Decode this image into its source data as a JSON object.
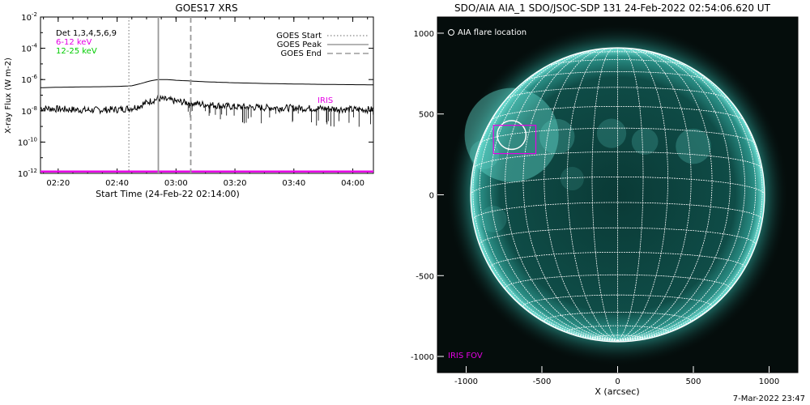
{
  "left_chart": {
    "title": "GOES17 XRS",
    "ylabel": "X-ray Flux (W m-2)",
    "xlabel": "Start Time (24-Feb-22 02:14:00)",
    "y_ticks": [
      "10-2",
      "10-4",
      "10-6",
      "10-8",
      "10-10",
      "10-12"
    ],
    "x_ticks": [
      "02:20",
      "02:40",
      "03:00",
      "03:20",
      "03:40",
      "04:00"
    ],
    "channel_labels": [
      {
        "text": "Det 1,3,4,5,6,9",
        "color": "#000000"
      },
      {
        "text": "6-12 keV",
        "color": "#e600e6"
      },
      {
        "text": "12-25 keV",
        "color": "#00cc00"
      }
    ],
    "legend": [
      {
        "label": "GOES Start",
        "style": "dotted"
      },
      {
        "label": "GOES Peak",
        "style": "solid"
      },
      {
        "label": "GOES End",
        "style": "dashed"
      }
    ],
    "iris_label": "IRIS"
  },
  "right_image": {
    "title": "SDO/AIA AIA_1 SDO/JSOC-SDP 131 24-Feb-2022 02:54:06.620 UT",
    "flare_label": "AIA flare location",
    "iris_fov_label": "IRIS FOV",
    "xlabel": "X (arcsec)",
    "x_ticks": [
      "-1000",
      "-500",
      "0",
      "500",
      "1000"
    ],
    "y_ticks": [
      "1000",
      "500",
      "0",
      "-500",
      "-1000"
    ]
  },
  "footer": "7-Mar-2022 23:47",
  "chart_data": [
    {
      "type": "line",
      "title": "GOES17 XRS",
      "xlabel": "Start Time (24-Feb-22 02:14:00)",
      "ylabel": "X-ray Flux (W m-2)",
      "y_scale": "log",
      "xlim": [
        "02:14",
        "04:07"
      ],
      "ylim": [
        1e-12,
        0.01
      ],
      "series": [
        {
          "name": "6-12 keV",
          "color": "#000000",
          "x": [
            "02:14",
            "02:20",
            "02:30",
            "02:40",
            "02:45",
            "02:48",
            "02:51",
            "02:54",
            "02:57",
            "03:00",
            "03:10",
            "03:20",
            "03:30",
            "03:40",
            "03:50",
            "04:00",
            "04:07"
          ],
          "y": [
            3e-07,
            3.2e-07,
            3.4e-07,
            3.6e-07,
            4e-07,
            5.5e-07,
            8e-07,
            1e-06,
            1e-06,
            9e-07,
            7.2e-07,
            6.2e-07,
            5.6e-07,
            5.2e-07,
            4.9e-07,
            4.7e-07,
            4.6e-07
          ]
        },
        {
          "name": "12-25 keV",
          "color": "#000000",
          "x": [
            "02:14",
            "02:20",
            "02:30",
            "02:40",
            "02:45",
            "02:48",
            "02:51",
            "02:54",
            "02:57",
            "03:00",
            "03:10",
            "03:20",
            "03:30",
            "03:40",
            "03:50",
            "04:00",
            "04:07"
          ],
          "y": [
            1.5e-08,
            1.3e-08,
            1.1e-08,
            1.2e-08,
            1.5e-08,
            2.2e-08,
            4e-08,
            6e-08,
            5e-08,
            4e-08,
            2.5e-08,
            1.8e-08,
            1.6e-08,
            1.5e-08,
            1.4e-08,
            1.2e-08,
            1.2e-08
          ]
        },
        {
          "name": "IRIS",
          "color": "#e600e6",
          "x": [
            "02:14",
            "04:07"
          ],
          "y": [
            1.3e-12,
            1.3e-12
          ]
        }
      ],
      "vertical_markers": [
        {
          "name": "GOES Start",
          "x": "02:44",
          "style": "dotted"
        },
        {
          "name": "GOES Peak",
          "x": "02:54",
          "style": "solid"
        },
        {
          "name": "GOES End",
          "x": "03:05",
          "style": "dashed"
        }
      ]
    },
    {
      "type": "image",
      "title": "SDO/AIA AIA_1 SDO/JSOC-SDP 131 24-Feb-2022 02:54:06.620 UT",
      "xlabel": "X (arcsec)",
      "xlim": [
        -1190,
        1190
      ],
      "ylim": [
        -1100,
        1100
      ],
      "solar_radius_arcsec": 970,
      "flare_location": {
        "x": -700,
        "y": 370
      },
      "iris_fov": {
        "x": [
          -820,
          -540
        ],
        "y": [
          255,
          430
        ]
      }
    }
  ]
}
